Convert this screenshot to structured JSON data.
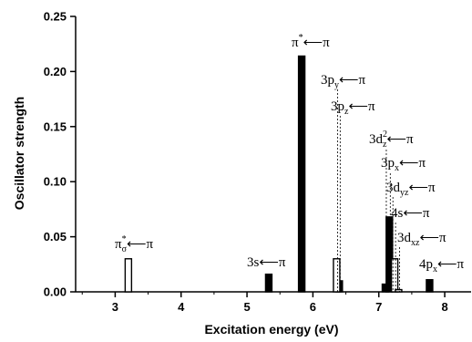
{
  "chart_data": {
    "type": "bar",
    "xlabel": "Excitation energy (eV)",
    "ylabel": "Oscillator strength",
    "xlim": [
      2.4,
      8.4
    ],
    "ylim": [
      0,
      0.25
    ],
    "x_ticks": [
      "3",
      "4",
      "5",
      "6",
      "7",
      "8"
    ],
    "y_ticks": [
      "0.00",
      "0.05",
      "0.10",
      "0.15",
      "0.20",
      "0.25"
    ],
    "grid": false,
    "legend": "none",
    "series": [
      {
        "style": "filled",
        "color": "#000000",
        "points": [
          {
            "x": 5.33,
            "y": 0.016
          },
          {
            "x": 5.83,
            "y": 0.214
          },
          {
            "x": 6.4,
            "y": 0.01
          },
          {
            "x": 7.1,
            "y": 0.007
          },
          {
            "x": 7.16,
            "y": 0.068
          },
          {
            "x": 7.77,
            "y": 0.011
          }
        ]
      },
      {
        "style": "open",
        "color": "#000000",
        "points": [
          {
            "x": 3.2,
            "y": 0.03
          },
          {
            "x": 6.36,
            "y": 0.03
          },
          {
            "x": 7.24,
            "y": 0.03
          },
          {
            "x": 7.3,
            "y": 0.002
          }
        ]
      }
    ],
    "annotations": [
      {
        "id": "pi-sigma",
        "main": "π",
        "sup": "*",
        "sub": "σ",
        "arrow": "⟵",
        "tail": "π",
        "x": 3.2
      },
      {
        "id": "3s",
        "main": "3s",
        "sup": "",
        "sub": "",
        "arrow": "⟵",
        "tail": "π",
        "x": 5.33
      },
      {
        "id": "pi-star",
        "main": "π",
        "sup": "*",
        "sub": "",
        "arrow": "⟵",
        "tail": "π",
        "x": 5.83
      },
      {
        "id": "3py",
        "main": "3p",
        "sup": "",
        "sub": "y",
        "arrow": "⟵",
        "tail": "π",
        "x": 6.36
      },
      {
        "id": "3pz",
        "main": "3p",
        "sup": "",
        "sub": "z",
        "arrow": "⟵",
        "tail": "π",
        "x": 6.4
      },
      {
        "id": "3dz2",
        "main": "3d",
        "sup": "2",
        "sub": "z",
        "arrow": "⟵",
        "tail": "π",
        "x": 7.1
      },
      {
        "id": "3px",
        "main": "3p",
        "sup": "",
        "sub": "x",
        "arrow": "⟵",
        "tail": "π",
        "x": 7.16
      },
      {
        "id": "3dyz",
        "main": "3d",
        "sup": "",
        "sub": "yz",
        "arrow": "⟵",
        "tail": "π",
        "x": 7.2
      },
      {
        "id": "4s",
        "main": "4s",
        "sup": "",
        "sub": "",
        "arrow": "⟵",
        "tail": "π",
        "x": 7.24
      },
      {
        "id": "3dxz",
        "main": "3d",
        "sup": "",
        "sub": "xz",
        "arrow": "⟵",
        "tail": "π",
        "x": 7.3
      },
      {
        "id": "4px",
        "main": "4p",
        "sup": "",
        "sub": "x",
        "arrow": "⟵",
        "tail": "π",
        "x": 7.77
      }
    ]
  }
}
